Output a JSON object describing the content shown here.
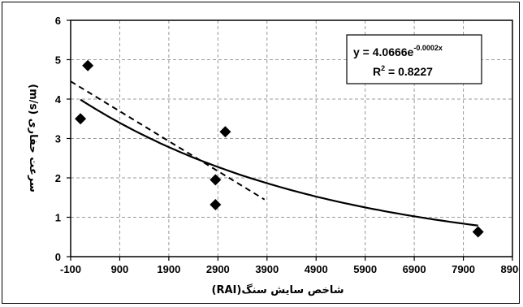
{
  "chart_data": {
    "type": "scatter",
    "title": "",
    "xlabel": "شاخص سایش سنگ(RAI)",
    "ylabel": "سرعت حفاری (m/s)",
    "xlim": [
      -100,
      8900
    ],
    "ylim": [
      0,
      6
    ],
    "x_ticks": [
      "-100",
      "900",
      "1900",
      "2900",
      "3900",
      "4900",
      "5900",
      "6900",
      "7900",
      "8900"
    ],
    "y_ticks": [
      "0",
      "1",
      "2",
      "3",
      "4",
      "5",
      "6"
    ],
    "grid": true,
    "legend": "none",
    "series": [
      {
        "marker": "diamond",
        "color": "#000000",
        "points": [
          {
            "x": 100,
            "y": 3.5
          },
          {
            "x": 250,
            "y": 4.85
          },
          {
            "x": 2850,
            "y": 1.95
          },
          {
            "x": 2850,
            "y": 1.32
          },
          {
            "x": 3050,
            "y": 3.17
          },
          {
            "x": 8200,
            "y": 0.63
          }
        ]
      }
    ],
    "trendlines": [
      {
        "kind": "exponential",
        "a": 4.0666,
        "b": -0.0002,
        "x_range": [
          100,
          8200
        ],
        "style": "solid"
      },
      {
        "kind": "linear",
        "x": [
          -100,
          3850
        ],
        "y": [
          4.45,
          1.45
        ],
        "style": "dashed"
      }
    ],
    "annotations": {
      "equation_prefix": "y = 4.0666e",
      "equation_exponent": "-0.0002x",
      "r2_prefix": "R",
      "r2_sup": "2",
      "r2_value": " = 0.8227"
    }
  }
}
